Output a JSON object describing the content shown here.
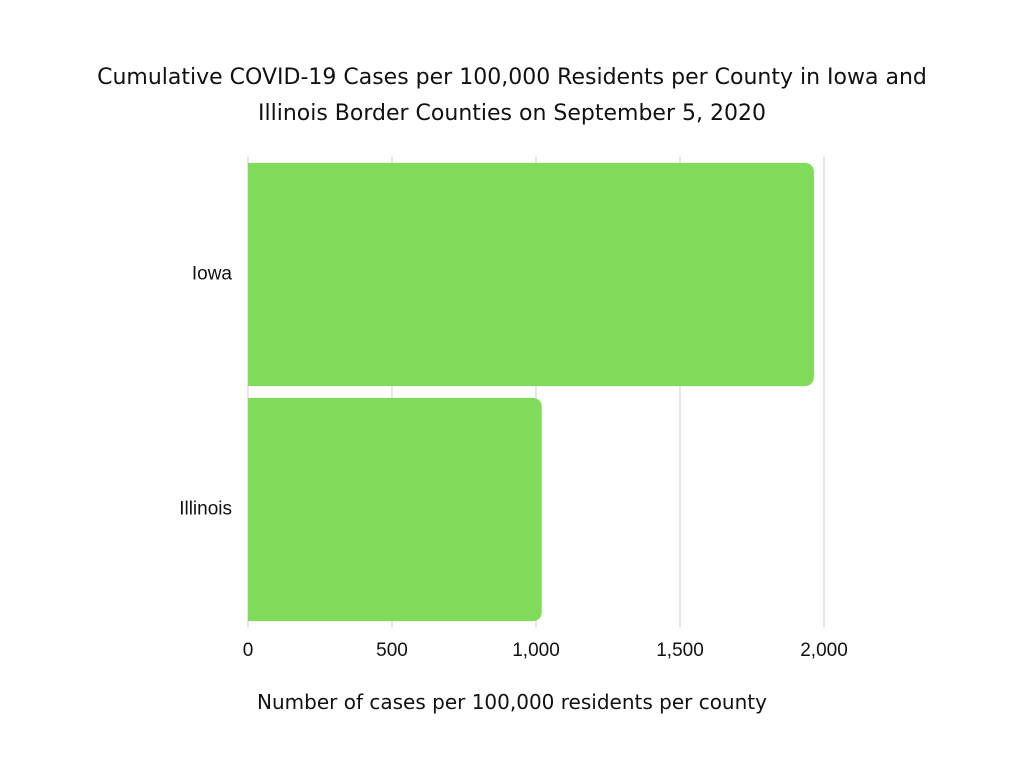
{
  "chart_data": {
    "type": "barh",
    "title": "Cumulative COVID-19 Cases per 100,000 Residents per County in Iowa and Illinois Border Counties on September 5, 2020",
    "x_label": "Number of cases per 100,000 residents per county",
    "categories": [
      "Iowa",
      "Illinois"
    ],
    "values": [
      1965,
      1020
    ],
    "color": "#80db5a",
    "xlim": [
      0,
      2000
    ],
    "xticks": [
      0,
      500,
      {
        "value": 1000,
        "label": "1,000"
      },
      {
        "value": 1500,
        "label": "1,500"
      },
      {
        "value": 2000,
        "label": "2,000"
      }
    ],
    "grid": true
  }
}
